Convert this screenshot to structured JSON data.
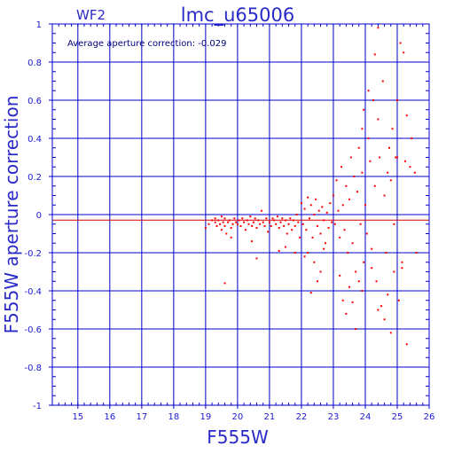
{
  "chart_data": {
    "type": "scatter",
    "title": "lmc_u65006",
    "panel_label": "WF2",
    "annotation": "Average aperture correction:   -0.029",
    "xlabel": "F555W",
    "ylabel": "F555W aperture correction",
    "xlim": [
      14.2,
      26.0
    ],
    "ylim": [
      -1.0,
      1.0
    ],
    "x_ticks": [
      "15",
      "16",
      "17",
      "18",
      "19",
      "20",
      "21",
      "22",
      "23",
      "24",
      "25",
      "26"
    ],
    "y_ticks": [
      "1",
      "0.8",
      "0.6",
      "0.4",
      "0.2",
      "0",
      "-0.2",
      "-0.4",
      "-0.6",
      "-0.8",
      "-1"
    ],
    "grid": true,
    "average_line": -0.029,
    "colors": {
      "axes": "#0000cc",
      "points": "#ff0000",
      "avg_line": "#dd0000"
    },
    "series": [
      {
        "values": [
          [
            19.0,
            -0.07
          ],
          [
            19.1,
            -0.05
          ],
          [
            19.2,
            -0.03
          ],
          [
            19.3,
            -0.04
          ],
          [
            19.3,
            -0.02
          ],
          [
            19.35,
            -0.06
          ],
          [
            19.4,
            -0.03
          ],
          [
            19.45,
            -0.05
          ],
          [
            19.5,
            -0.01
          ],
          [
            19.5,
            -0.08
          ],
          [
            19.55,
            -0.04
          ],
          [
            19.6,
            -0.02
          ],
          [
            19.6,
            -0.06
          ],
          [
            19.65,
            -0.1
          ],
          [
            19.7,
            -0.04
          ],
          [
            19.75,
            -0.03
          ],
          [
            19.8,
            -0.07
          ],
          [
            19.85,
            -0.05
          ],
          [
            19.9,
            -0.02
          ],
          [
            19.95,
            -0.04
          ],
          [
            19.6,
            -0.36
          ],
          [
            19.8,
            -0.12
          ],
          [
            20.0,
            -0.05
          ],
          [
            20.05,
            -0.03
          ],
          [
            20.1,
            -0.06
          ],
          [
            20.15,
            -0.02
          ],
          [
            20.2,
            -0.04
          ],
          [
            20.25,
            -0.08
          ],
          [
            20.3,
            -0.03
          ],
          [
            20.35,
            -0.05
          ],
          [
            20.4,
            -0.01
          ],
          [
            20.45,
            -0.06
          ],
          [
            20.5,
            -0.04
          ],
          [
            20.55,
            -0.02
          ],
          [
            20.6,
            -0.07
          ],
          [
            20.65,
            -0.03
          ],
          [
            20.7,
            -0.05
          ],
          [
            20.75,
            0.02
          ],
          [
            20.8,
            -0.04
          ],
          [
            20.85,
            -0.06
          ],
          [
            20.9,
            -0.02
          ],
          [
            20.95,
            -0.09
          ],
          [
            20.6,
            -0.23
          ],
          [
            20.45,
            -0.14
          ],
          [
            21.0,
            -0.04
          ],
          [
            21.05,
            -0.06
          ],
          [
            21.1,
            -0.02
          ],
          [
            21.15,
            -0.03
          ],
          [
            21.2,
            -0.05
          ],
          [
            21.25,
            -0.01
          ],
          [
            21.3,
            -0.07
          ],
          [
            21.35,
            -0.04
          ],
          [
            21.4,
            -0.02
          ],
          [
            21.45,
            -0.06
          ],
          [
            21.5,
            -0.03
          ],
          [
            21.55,
            -0.1
          ],
          [
            21.6,
            -0.05
          ],
          [
            21.65,
            -0.02
          ],
          [
            21.7,
            -0.08
          ],
          [
            21.75,
            -0.03
          ],
          [
            21.8,
            -0.06
          ],
          [
            21.85,
            0.0
          ],
          [
            21.9,
            -0.04
          ],
          [
            21.95,
            -0.12
          ],
          [
            21.3,
            -0.19
          ],
          [
            21.8,
            -0.2
          ],
          [
            21.5,
            -0.17
          ],
          [
            22.0,
            0.06
          ],
          [
            22.05,
            -0.05
          ],
          [
            22.1,
            0.03
          ],
          [
            22.15,
            -0.08
          ],
          [
            22.2,
            0.09
          ],
          [
            22.25,
            -0.02
          ],
          [
            22.3,
            0.05
          ],
          [
            22.35,
            -0.12
          ],
          [
            22.4,
            0.0
          ],
          [
            22.45,
            0.08
          ],
          [
            22.5,
            -0.06
          ],
          [
            22.55,
            0.02
          ],
          [
            22.6,
            -0.1
          ],
          [
            22.65,
            0.04
          ],
          [
            22.7,
            -0.03
          ],
          [
            22.75,
            -0.15
          ],
          [
            22.8,
            0.01
          ],
          [
            22.85,
            -0.07
          ],
          [
            22.9,
            0.06
          ],
          [
            22.95,
            -0.04
          ],
          [
            22.2,
            -0.2
          ],
          [
            22.4,
            -0.25
          ],
          [
            22.3,
            -0.41
          ],
          [
            22.6,
            -0.3
          ],
          [
            22.1,
            -0.22
          ],
          [
            22.7,
            -0.18
          ],
          [
            22.5,
            -0.35
          ],
          [
            23.0,
            0.1
          ],
          [
            23.05,
            -0.05
          ],
          [
            23.1,
            0.18
          ],
          [
            23.15,
            0.02
          ],
          [
            23.2,
            -0.12
          ],
          [
            23.25,
            0.25
          ],
          [
            23.3,
            0.05
          ],
          [
            23.35,
            -0.08
          ],
          [
            23.4,
            0.15
          ],
          [
            23.45,
            -0.2
          ],
          [
            23.5,
            0.08
          ],
          [
            23.55,
            0.3
          ],
          [
            23.6,
            -0.15
          ],
          [
            23.65,
            0.2
          ],
          [
            23.7,
            -0.3
          ],
          [
            23.75,
            0.12
          ],
          [
            23.8,
            0.35
          ],
          [
            23.85,
            -0.05
          ],
          [
            23.9,
            0.22
          ],
          [
            23.95,
            -0.25
          ],
          [
            23.3,
            -0.45
          ],
          [
            23.4,
            -0.52
          ],
          [
            23.5,
            -0.38
          ],
          [
            23.7,
            -0.6
          ],
          [
            23.8,
            -0.35
          ],
          [
            23.9,
            -0.4
          ],
          [
            23.2,
            -0.32
          ],
          [
            23.6,
            -0.46
          ],
          [
            23.9,
            0.45
          ],
          [
            23.95,
            0.55
          ],
          [
            24.0,
            0.05
          ],
          [
            24.05,
            -0.1
          ],
          [
            24.1,
            0.4
          ],
          [
            24.15,
            0.28
          ],
          [
            24.2,
            -0.18
          ],
          [
            24.25,
            0.6
          ],
          [
            24.3,
            0.15
          ],
          [
            24.35,
            -0.35
          ],
          [
            24.4,
            0.5
          ],
          [
            24.45,
            0.3
          ],
          [
            24.5,
            -0.48
          ],
          [
            24.55,
            0.7
          ],
          [
            24.6,
            0.1
          ],
          [
            24.65,
            -0.2
          ],
          [
            24.7,
            0.22
          ],
          [
            24.75,
            0.35
          ],
          [
            24.8,
            -0.62
          ],
          [
            24.85,
            0.45
          ],
          [
            24.9,
            -0.05
          ],
          [
            24.95,
            0.3
          ],
          [
            24.3,
            0.84
          ],
          [
            24.4,
            0.98
          ],
          [
            24.1,
            0.65
          ],
          [
            24.2,
            -0.28
          ],
          [
            24.6,
            -0.55
          ],
          [
            24.7,
            -0.42
          ],
          [
            24.8,
            0.18
          ],
          [
            24.9,
            -0.3
          ],
          [
            24.4,
            -0.5
          ],
          [
            25.0,
            0.3
          ],
          [
            25.1,
            0.9
          ],
          [
            25.15,
            -0.25
          ],
          [
            25.2,
            0.85
          ],
          [
            25.25,
            0.28
          ],
          [
            25.3,
            0.52
          ],
          [
            25.4,
            0.25
          ],
          [
            25.45,
            0.4
          ],
          [
            25.55,
            0.22
          ],
          [
            25.3,
            -0.68
          ],
          [
            25.15,
            -0.28
          ],
          [
            25.6,
            -0.2
          ],
          [
            25.0,
            0.6
          ],
          [
            25.05,
            -0.45
          ]
        ]
      }
    ]
  }
}
